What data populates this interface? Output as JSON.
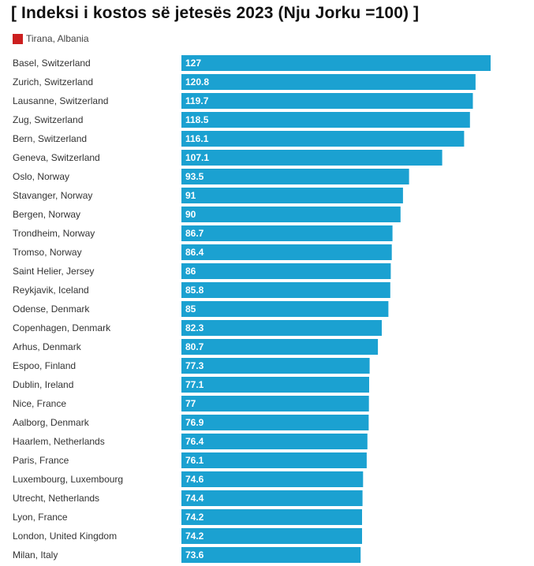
{
  "colors": {
    "bar": "#1ba1d1",
    "highlight": "#cc1f1f"
  },
  "chart_data": {
    "type": "bar",
    "orientation": "horizontal",
    "title": "[ Indeksi i kostos së jetesës 2023 (Nju Jorku =100) ]",
    "legend": [
      {
        "label": "Tirana, Albania",
        "color": "#cc1f1f"
      }
    ],
    "legend_position": "top-left",
    "grid": false,
    "xlim": [
      0,
      127
    ],
    "categories": [
      "Basel, Switzerland",
      "Zurich, Switzerland",
      "Lausanne, Switzerland",
      "Zug, Switzerland",
      "Bern, Switzerland",
      "Geneva, Switzerland",
      "Oslo, Norway",
      "Stavanger, Norway",
      "Bergen, Norway",
      "Trondheim, Norway",
      "Tromso, Norway",
      "Saint Helier, Jersey",
      "Reykjavik, Iceland",
      "Odense, Denmark",
      "Copenhagen, Denmark",
      "Arhus, Denmark",
      "Espoo, Finland",
      "Dublin, Ireland",
      "Nice, France",
      "Aalborg, Denmark",
      "Haarlem, Netherlands",
      "Paris, France",
      "Luxembourg, Luxembourg",
      "Utrecht, Netherlands",
      "Lyon, France",
      "London, United Kingdom",
      "Milan, Italy"
    ],
    "values": [
      127,
      120.8,
      119.7,
      118.5,
      116.1,
      107.1,
      93.5,
      91,
      90,
      86.7,
      86.4,
      86,
      85.8,
      85,
      82.3,
      80.7,
      77.3,
      77.1,
      77,
      76.9,
      76.4,
      76.1,
      74.6,
      74.4,
      74.2,
      74.2,
      73.6
    ],
    "value_labels": [
      "127",
      "120.8",
      "119.7",
      "118.5",
      "116.1",
      "107.1",
      "93.5",
      "91",
      "90",
      "86.7",
      "86.4",
      "86",
      "85.8",
      "85",
      "82.3",
      "80.7",
      "77.3",
      "77.1",
      "77",
      "76.9",
      "76.4",
      "76.1",
      "74.6",
      "74.4",
      "74.2",
      "74.2",
      "73.6"
    ]
  }
}
